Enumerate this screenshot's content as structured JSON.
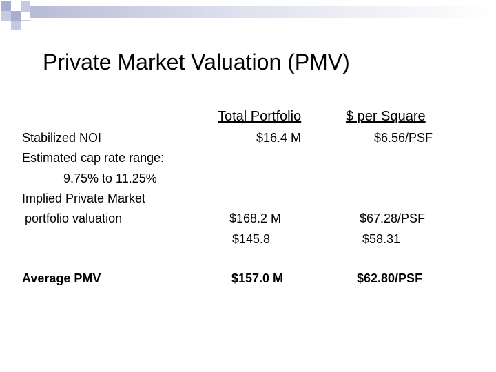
{
  "slide": {
    "title": "Private Market Valuation (PMV)",
    "columns": {
      "total": "Total Portfolio",
      "per_square": "$ per Square"
    },
    "rows": {
      "stabilized_noi": {
        "label": "Stabilized NOI",
        "total": "$16.4 M",
        "per_square": "$6.56/PSF"
      },
      "cap_rate": {
        "label_line1": "Estimated cap rate range:",
        "label_line2": "9.75% to 11.25%"
      },
      "implied": {
        "label_line1": "Implied Private Market",
        "label_line2": "portfolio valuation",
        "total_high": "$168.2 M",
        "per_square_high": "$67.28/PSF",
        "total_low": "$145.8",
        "per_square_low": "$58.31"
      },
      "average": {
        "label": "Average  PMV",
        "total": "$157.0 M",
        "per_square": "$62.80/PSF"
      }
    }
  },
  "colors": {
    "accent": "#a9aed0",
    "accent_light": "#c5c9e2"
  }
}
